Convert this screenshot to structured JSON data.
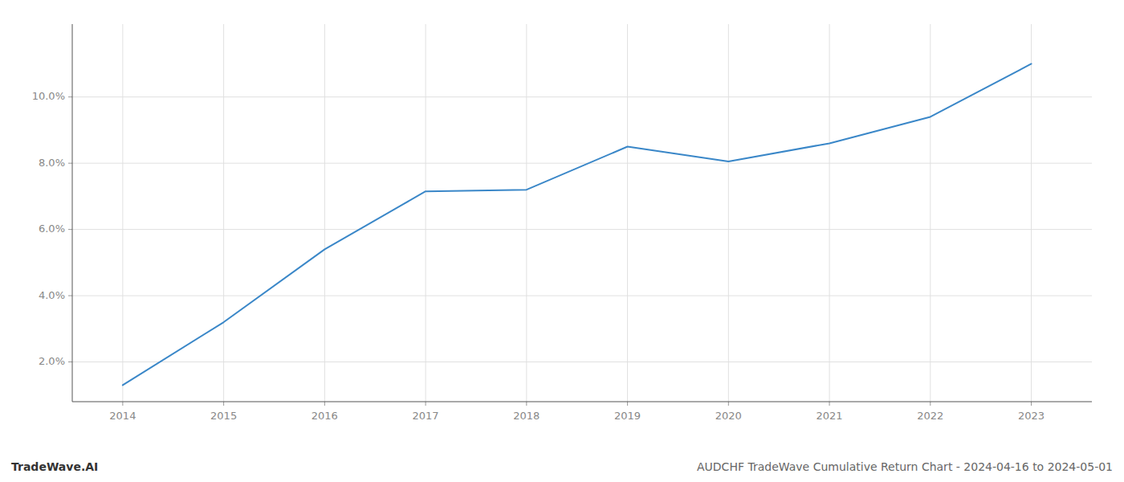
{
  "chart_data": {
    "type": "line",
    "title": "AUDCHF TradeWave Cumulative Return Chart - 2024-04-16 to 2024-05-01",
    "annotations": [
      "TradeWave.AI"
    ],
    "x": [
      2014,
      2015,
      2016,
      2017,
      2018,
      2019,
      2020,
      2021,
      2022,
      2023
    ],
    "values": [
      1.3,
      3.2,
      5.4,
      7.15,
      7.2,
      8.5,
      8.05,
      8.6,
      9.4,
      11.0
    ],
    "color": "#3a87c8",
    "xlim": [
      2013.5,
      2023.6
    ],
    "ylim": [
      0.8,
      12.2
    ],
    "xticks": [
      2014,
      2015,
      2016,
      2017,
      2018,
      2019,
      2020,
      2021,
      2022,
      2023
    ],
    "yticks": [
      {
        "value": 2.0,
        "label": "2.0%"
      },
      {
        "value": 4.0,
        "label": "4.0%"
      },
      {
        "value": 6.0,
        "label": "6.0%"
      },
      {
        "value": 8.0,
        "label": "8.0%"
      },
      {
        "value": 10.0,
        "label": "10.0%"
      }
    ],
    "grid": true
  }
}
